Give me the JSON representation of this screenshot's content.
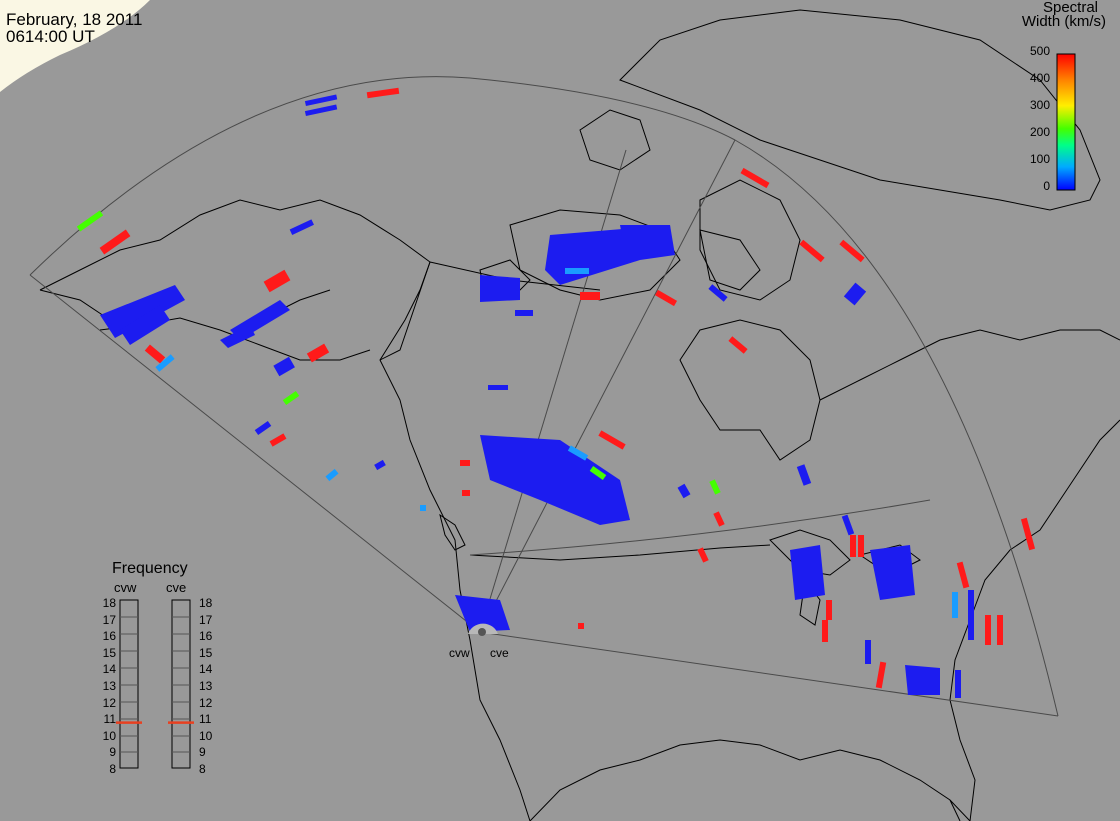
{
  "header": {
    "date": "February, 18 2011",
    "time": "0614:00 UT"
  },
  "colorbar": {
    "title_line1": "Spectral",
    "title_line2": "Width (km/s)",
    "ticks": [
      "500",
      "400",
      "300",
      "200",
      "100",
      "0"
    ],
    "stops": [
      "#0000ff",
      "#00aaff",
      "#00ff88",
      "#44ff00",
      "#ffee00",
      "#ff8800",
      "#ff0000"
    ]
  },
  "frequency_panel": {
    "title": "Frequency",
    "radars": [
      {
        "name": "cvw",
        "freq_mhz": 10.7
      },
      {
        "name": "cve",
        "freq_mhz": 10.7
      }
    ],
    "ticks": [
      "18",
      "17",
      "16",
      "15",
      "14",
      "13",
      "12",
      "11",
      "10",
      "9",
      "8"
    ],
    "marker_color": "#e84020"
  },
  "radar_site": {
    "labels": [
      "cvw",
      "cve"
    ]
  },
  "colors": {
    "background": "#999999",
    "coastline": "#000000",
    "fov_outline": "#4a4a4a",
    "low_width": "#1c1cf0",
    "high_width": "#ff1a1a"
  }
}
